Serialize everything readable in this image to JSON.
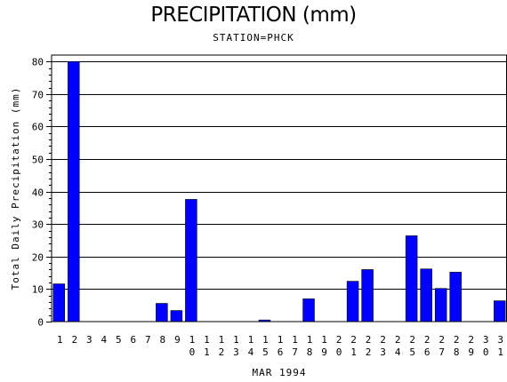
{
  "chart_data": {
    "type": "bar",
    "title": "PRECIPITATION (mm)",
    "subtitle": "STATION=PHCK",
    "xlabel": "MAR 1994",
    "ylabel": "Total Daily Precipitation (mm)",
    "ylim": [
      0,
      82
    ],
    "yticks": [
      0,
      10,
      20,
      30,
      40,
      50,
      60,
      70,
      80
    ],
    "grid": true,
    "bar_color": "#0000ff",
    "categories": [
      "1",
      "2",
      "3",
      "4",
      "5",
      "6",
      "7",
      "8",
      "9",
      "10",
      "11",
      "12",
      "13",
      "14",
      "15",
      "16",
      "17",
      "18",
      "19",
      "20",
      "21",
      "22",
      "23",
      "24",
      "25",
      "26",
      "27",
      "28",
      "29",
      "30",
      "31"
    ],
    "values": [
      11.6,
      80,
      0,
      0,
      0,
      0,
      0,
      5.6,
      3.4,
      37.6,
      0,
      0,
      0,
      0,
      0.5,
      0,
      0,
      7,
      0,
      0,
      12.4,
      16,
      0,
      0,
      26.4,
      16.2,
      10.2,
      15.2,
      0,
      0,
      6.4
    ]
  }
}
